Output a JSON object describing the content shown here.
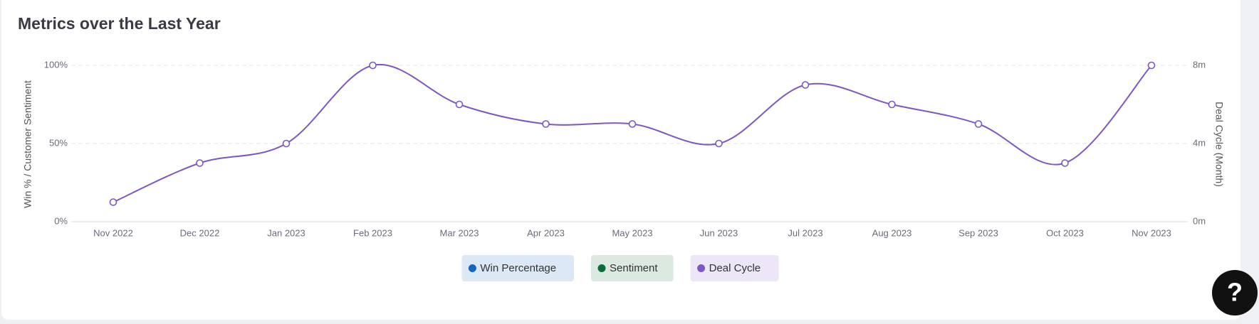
{
  "chart_data": {
    "type": "line",
    "title": "Metrics over the Last Year",
    "ylabel": "Win % / Customer Sentiment",
    "y2label": "Deal Cycle (Month)",
    "categories": [
      "Nov 2022",
      "Dec 2022",
      "Jan 2023",
      "Feb 2023",
      "Mar 2023",
      "Apr 2023",
      "May 2023",
      "Jun 2023",
      "Jul 2023",
      "Aug 2023",
      "Sep 2023",
      "Oct 2023",
      "Nov 2023"
    ],
    "series": [
      {
        "name": "Win Percentage",
        "color": "#1565c0",
        "values": [
          null,
          null,
          null,
          null,
          null,
          null,
          null,
          null,
          null,
          null,
          null,
          null,
          null
        ]
      },
      {
        "name": "Sentiment",
        "color": "#0d6b3a",
        "values": [
          null,
          null,
          null,
          null,
          null,
          null,
          null,
          null,
          null,
          null,
          null,
          null,
          null
        ]
      },
      {
        "name": "Deal Cycle",
        "color": "#7e57c2",
        "axis": "y2",
        "values": [
          1,
          3,
          4,
          8,
          6,
          5,
          5,
          4,
          7,
          6,
          5,
          3,
          8
        ]
      }
    ],
    "ylim": [
      0,
      100
    ],
    "yticks": [
      {
        "value": 0,
        "label": "0%"
      },
      {
        "value": 50,
        "label": "50%"
      },
      {
        "value": 100,
        "label": "100%"
      }
    ],
    "y2lim": [
      0,
      8
    ],
    "y2ticks": [
      {
        "value": 0,
        "label": "0m"
      },
      {
        "value": 4,
        "label": "4m"
      },
      {
        "value": 8,
        "label": "8m"
      }
    ],
    "grid": true,
    "legend": "bottom"
  },
  "help_button": {
    "label": "?"
  }
}
